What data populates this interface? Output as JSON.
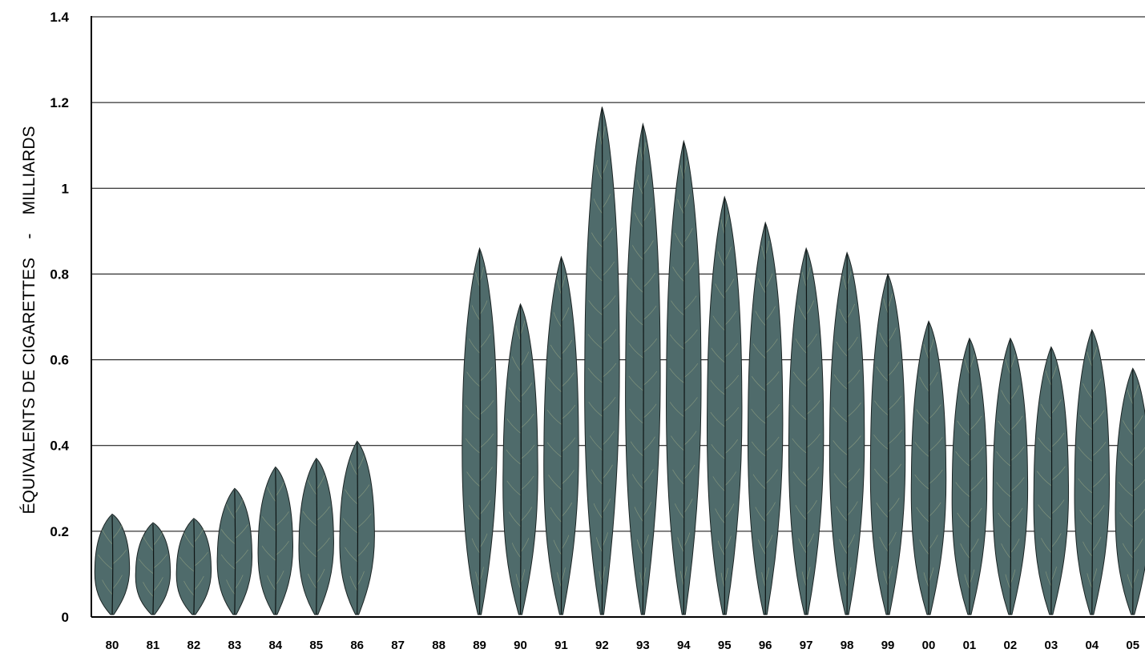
{
  "chart_data": {
    "type": "bar",
    "ylabel": "ÉQUIVALENTS DE CIGARETTES    -    MILLIARDS",
    "ylim": [
      0,
      1.4
    ],
    "yticks": [
      "0",
      "0.2",
      "0.4",
      "0.6",
      "0.8",
      "1",
      "1.2",
      "1.4"
    ],
    "grid": true,
    "bar_style": "tobacco-leaf",
    "leaf_color": "#4f6b6b",
    "categories": [
      "80",
      "81",
      "82",
      "83",
      "84",
      "85",
      "86",
      "87",
      "88",
      "89",
      "90",
      "91",
      "92",
      "93",
      "94",
      "95",
      "96",
      "97",
      "98",
      "99",
      "00",
      "01",
      "02",
      "03",
      "04",
      "05"
    ],
    "values": [
      0.24,
      0.22,
      0.23,
      0.3,
      0.35,
      0.37,
      0.41,
      null,
      null,
      0.86,
      0.73,
      0.84,
      1.19,
      1.15,
      1.11,
      0.98,
      0.92,
      0.86,
      0.85,
      0.8,
      0.69,
      0.65,
      0.65,
      0.63,
      0.67,
      0.58
    ]
  }
}
